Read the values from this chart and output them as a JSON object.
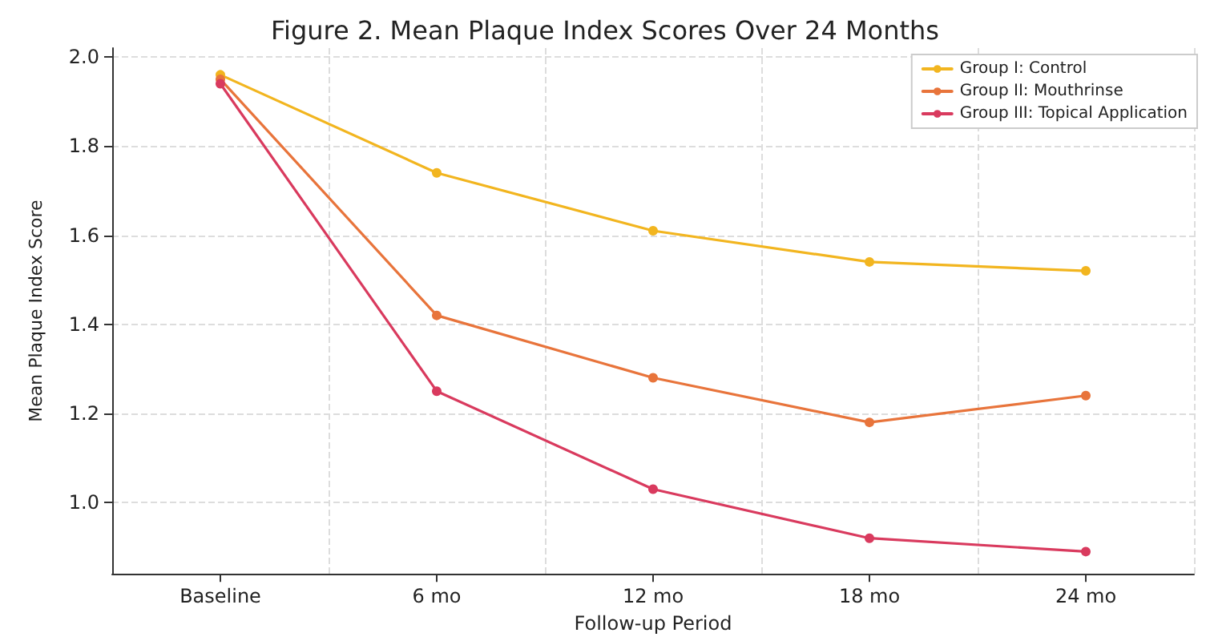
{
  "chart_data": {
    "type": "line",
    "title": "Figure 2. Mean Plaque Index Scores Over 24 Months",
    "xlabel": "Follow-up Period",
    "ylabel": "Mean Plaque Index Score",
    "categories": [
      "Baseline",
      "6 mo",
      "12 mo",
      "18 mo",
      "24 mo"
    ],
    "series": [
      {
        "name": "Group I: Control",
        "color": "#f2b51f",
        "values": [
          1.96,
          1.74,
          1.61,
          1.54,
          1.52
        ]
      },
      {
        "name": "Group II: Mouthrinse",
        "color": "#e8743b",
        "values": [
          1.95,
          1.42,
          1.28,
          1.18,
          1.24
        ]
      },
      {
        "name": "Group III: Topical Application",
        "color": "#d93a5e",
        "values": [
          1.94,
          1.25,
          1.03,
          0.92,
          0.89
        ]
      }
    ],
    "ylim": [
      0.84,
      2.02
    ],
    "yticks": [
      {
        "value": 1.0,
        "label": "1.0"
      },
      {
        "value": 1.2,
        "label": "1.2"
      },
      {
        "value": 1.4,
        "label": "1.4"
      },
      {
        "value": 1.6,
        "label": "1.6"
      },
      {
        "value": 1.8,
        "label": "1.8"
      },
      {
        "value": 2.0,
        "label": "2.0"
      }
    ],
    "grid": true,
    "legend": "top right",
    "marker": "circle",
    "line_style": "solid"
  }
}
